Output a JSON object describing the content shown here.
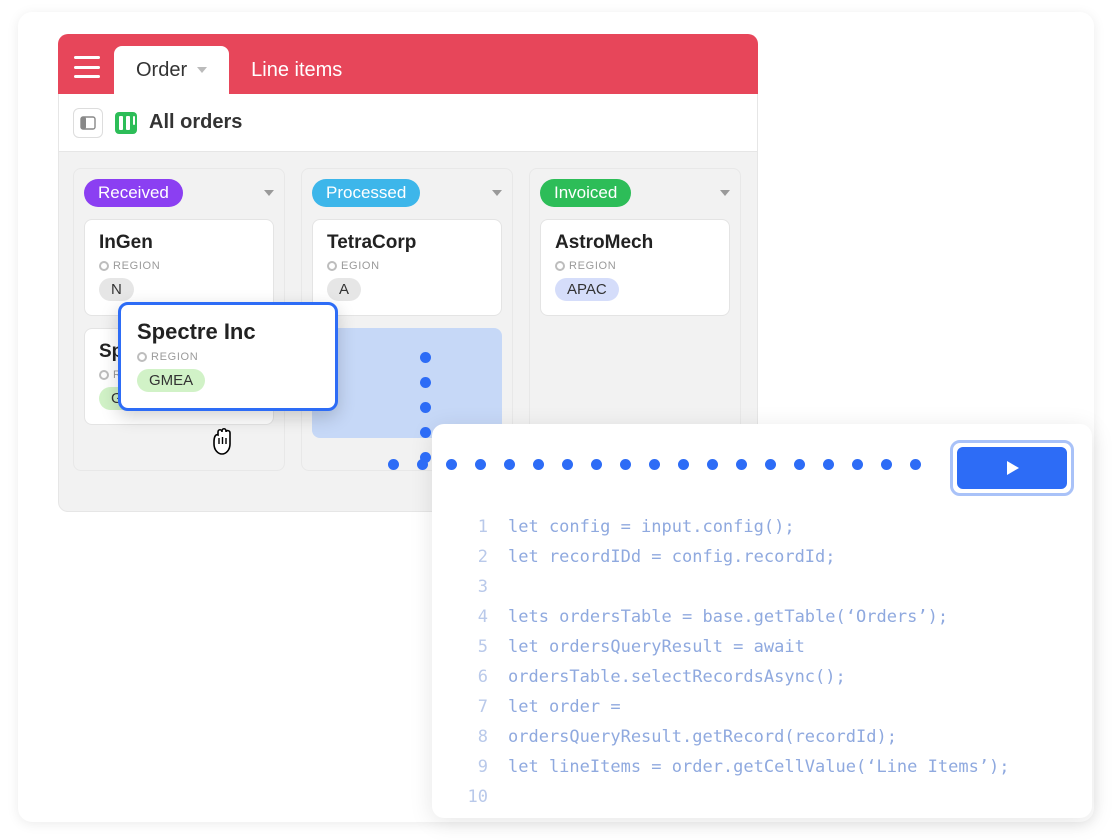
{
  "colors": {
    "topbar": "#e7465a",
    "accent_blue": "#2d6cf6",
    "board_bg": "#f2f2f2",
    "code_text": "#8fa9df"
  },
  "tabs": {
    "active": "Order",
    "inactive": "Line items"
  },
  "view": {
    "title": "All orders"
  },
  "columns": [
    {
      "status": "Received",
      "pill_color": "#8b3ff2",
      "cards": [
        {
          "title": "InGen",
          "region_label": "REGION",
          "region": "N",
          "chip_color": "#e6e6e6"
        },
        {
          "title": "Sp",
          "region_label": "RE",
          "region": "GMEA",
          "chip_color": "#d1f2c7"
        }
      ]
    },
    {
      "status": "Processed",
      "pill_color": "#3db6ea",
      "cards": [
        {
          "title": "TetraCorp",
          "region_label": "EGION",
          "region": "A",
          "chip_color": "#e6e6e6"
        }
      ],
      "has_placeholder": true
    },
    {
      "status": "Invoiced",
      "pill_color": "#2dbd58",
      "cards": [
        {
          "title": "AstroMech",
          "region_label": "REGION",
          "region": "APAC",
          "chip_color": "#d5ddfa"
        }
      ]
    }
  ],
  "drag_card": {
    "title": "Spectre Inc",
    "region_label": "REGION",
    "region": "GMEA",
    "chip_color": "#d1f2c7"
  },
  "code": {
    "lines": [
      "let config = input.config();",
      "let recordIDd = config.recordId;",
      "",
      "lets ordersTable = base.getTable(‘Orders’);",
      "let ordersQueryResult = await",
      "ordersTable.selectRecordsAsync();",
      "let order =",
      "ordersQueryResult.getRecord(recordId);",
      "let lineItems = order.getCellValue(‘Line Items’);",
      ""
    ]
  }
}
